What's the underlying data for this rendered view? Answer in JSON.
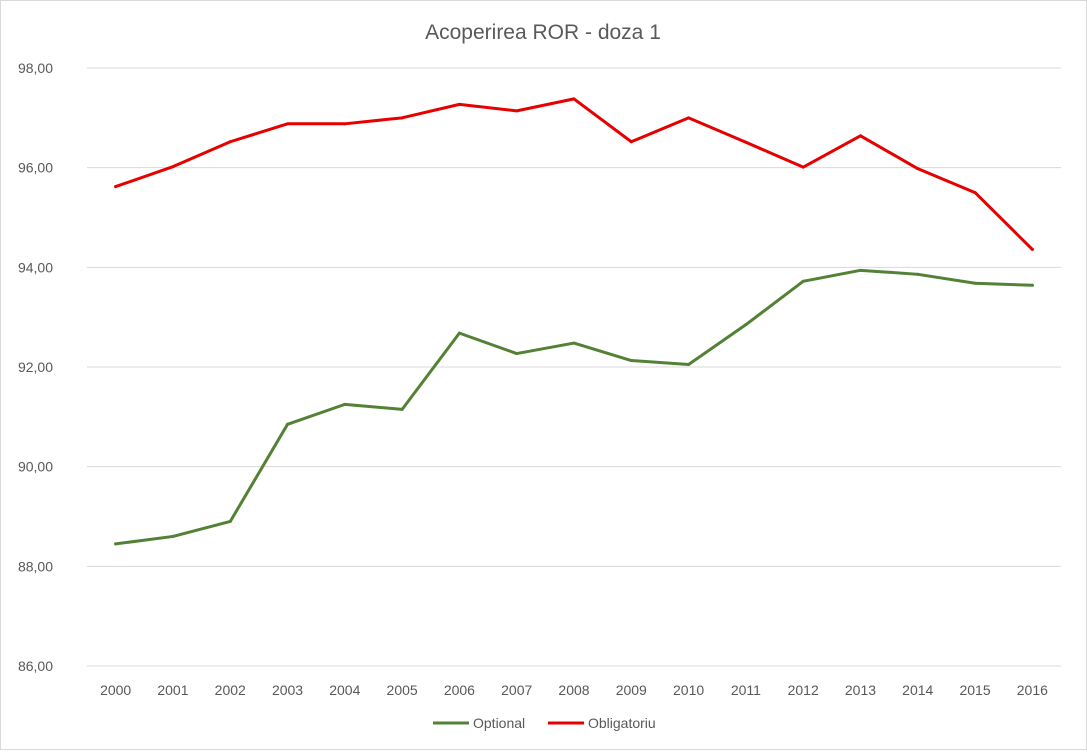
{
  "chart_data": {
    "type": "line",
    "title": "Acoperirea ROR - doza 1",
    "xlabel": "",
    "ylabel": "",
    "ylim": [
      86,
      98
    ],
    "yticks": [
      "86,00",
      "88,00",
      "90,00",
      "92,00",
      "94,00",
      "96,00",
      "98,00"
    ],
    "ytick_values": [
      86,
      88,
      90,
      92,
      94,
      96,
      98
    ],
    "categories": [
      "2000",
      "2001",
      "2002",
      "2003",
      "2004",
      "2005",
      "2006",
      "2007",
      "2008",
      "2009",
      "2010",
      "2011",
      "2012",
      "2013",
      "2014",
      "2015",
      "2016"
    ],
    "grid": true,
    "legend_position": "bottom",
    "series": [
      {
        "name": "Optional",
        "color": "#538135",
        "values": [
          88.45,
          88.6,
          88.9,
          90.85,
          91.25,
          91.15,
          92.68,
          92.27,
          92.48,
          92.13,
          92.05,
          92.85,
          93.72,
          93.94,
          93.86,
          93.68,
          93.64
        ]
      },
      {
        "name": "Obligatoriu",
        "color": "#e60000",
        "values": [
          95.62,
          96.02,
          96.52,
          96.88,
          96.88,
          97.0,
          97.27,
          97.14,
          97.38,
          96.52,
          97.0,
          96.51,
          96.01,
          96.64,
          95.98,
          95.5,
          94.36
        ]
      }
    ]
  }
}
